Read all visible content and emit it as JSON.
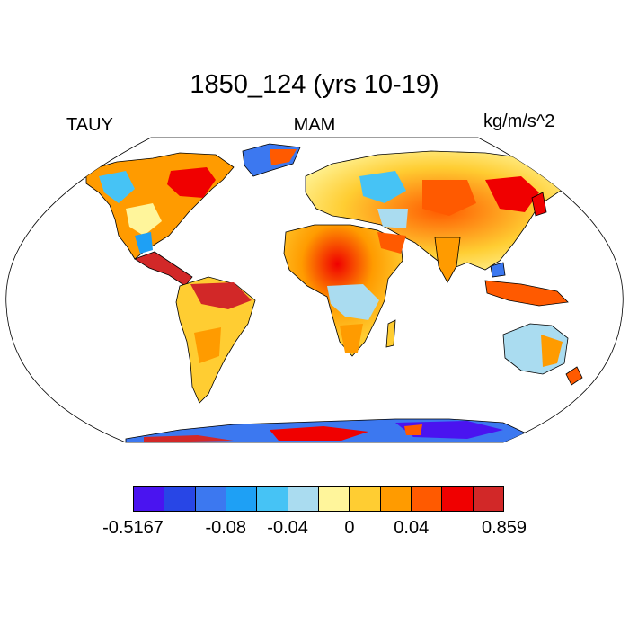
{
  "title": "1850_124 (yrs 10-19)",
  "left_label": "TAUY",
  "center_label": "MAM",
  "units": "kg/m/s^2",
  "colorbar": {
    "colors": [
      "#4a14f0",
      "#2846e6",
      "#3c78f0",
      "#1ea0f5",
      "#46c3f5",
      "#aadcf0",
      "#fff59b",
      "#ffcd32",
      "#ff9b00",
      "#ff5a00",
      "#f00000",
      "#d22828"
    ],
    "labels": [
      {
        "text": "-0.5167",
        "boundary": 0
      },
      {
        "text": "-0.08",
        "boundary": 3
      },
      {
        "text": "-0.04",
        "boundary": 5
      },
      {
        "text": "0",
        "boundary": 7
      },
      {
        "text": "0.04",
        "boundary": 9
      },
      {
        "text": "0.859",
        "boundary": 12
      }
    ]
  }
}
